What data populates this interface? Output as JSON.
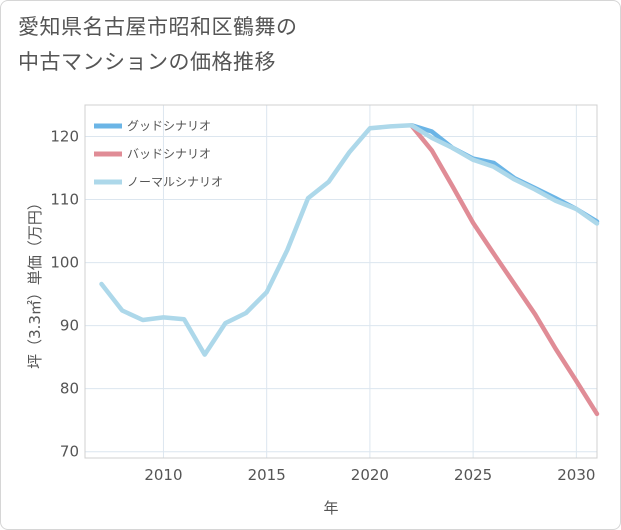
{
  "title_line1": "愛知県名古屋市昭和区鶴舞の",
  "title_line2": "中古マンションの価格推移",
  "chart_data": {
    "type": "line",
    "xlabel": "年",
    "ylabel": "坪（3.3㎡）単価（万円）",
    "xlim": [
      2006.2,
      2031
    ],
    "ylim": [
      69,
      125
    ],
    "x_ticks": [
      2010,
      2015,
      2020,
      2025,
      2030
    ],
    "y_ticks": [
      70,
      80,
      90,
      100,
      110,
      120
    ],
    "legend": {
      "position": "top-left"
    },
    "series": [
      {
        "name": "グッドシナリオ",
        "color": "#6bb5e6",
        "points": [
          [
            2022,
            121.8
          ],
          [
            2023,
            120.8
          ],
          [
            2024,
            118.2
          ],
          [
            2025,
            116.5
          ],
          [
            2026,
            115.8
          ],
          [
            2027,
            113.4
          ],
          [
            2028,
            111.8
          ],
          [
            2029,
            110.2
          ],
          [
            2030,
            108.5
          ],
          [
            2031,
            106.5
          ]
        ]
      },
      {
        "name": "バッドシナリオ",
        "color": "#e08c96",
        "points": [
          [
            2022,
            121.8
          ],
          [
            2023,
            117.8
          ],
          [
            2024,
            112.1
          ],
          [
            2025,
            106.3
          ],
          [
            2026,
            101.4
          ],
          [
            2027,
            96.6
          ],
          [
            2028,
            91.8
          ],
          [
            2029,
            86.3
          ],
          [
            2030,
            81.2
          ],
          [
            2031,
            76.0
          ]
        ]
      },
      {
        "name": "ノーマルシナリオ",
        "color": "#add8ea",
        "points": [
          [
            2007,
            96.6
          ],
          [
            2008,
            92.4
          ],
          [
            2009,
            90.9
          ],
          [
            2010,
            91.3
          ],
          [
            2011,
            91.0
          ],
          [
            2012,
            85.4
          ],
          [
            2013,
            90.4
          ],
          [
            2014,
            92.0
          ],
          [
            2015,
            95.3
          ],
          [
            2016,
            102.0
          ],
          [
            2017,
            110.2
          ],
          [
            2018,
            112.8
          ],
          [
            2019,
            117.5
          ],
          [
            2020,
            121.3
          ],
          [
            2021,
            121.6
          ],
          [
            2022,
            121.8
          ],
          [
            2023,
            119.8
          ],
          [
            2024,
            118.2
          ],
          [
            2025,
            116.3
          ],
          [
            2026,
            115.2
          ],
          [
            2027,
            113.2
          ],
          [
            2028,
            111.6
          ],
          [
            2029,
            109.8
          ],
          [
            2030,
            108.5
          ],
          [
            2031,
            106.2
          ]
        ]
      }
    ]
  }
}
